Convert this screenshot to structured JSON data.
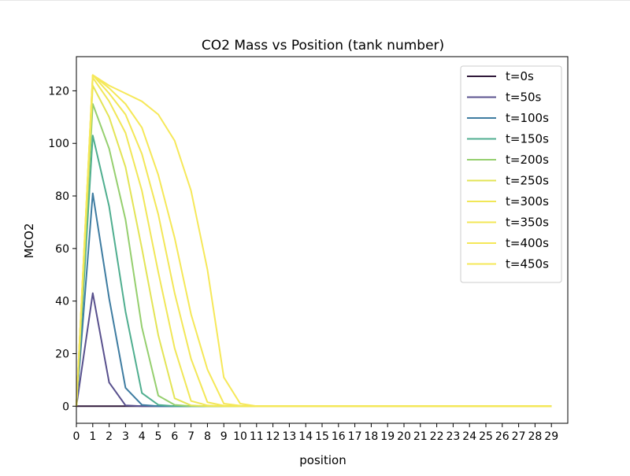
{
  "chart_data": {
    "type": "line",
    "title": "CO2 Mass vs Position (tank number)",
    "xlabel": "position",
    "ylabel": "MCO2",
    "xlim": [
      0,
      30
    ],
    "ylim": [
      -6.5,
      133
    ],
    "xticks": [
      0,
      1,
      2,
      3,
      4,
      5,
      6,
      7,
      8,
      9,
      10,
      11,
      12,
      13,
      14,
      15,
      16,
      17,
      18,
      19,
      20,
      21,
      22,
      23,
      24,
      25,
      26,
      27,
      28,
      29
    ],
    "yticks": [
      0,
      20,
      40,
      60,
      80,
      100,
      120
    ],
    "grid": false,
    "legend_position": "top-right",
    "x": [
      0,
      1,
      2,
      3,
      4,
      5,
      6,
      7,
      8,
      9,
      10,
      11,
      12,
      13,
      14,
      15,
      16,
      17,
      18,
      19,
      20,
      21,
      22,
      23,
      24,
      25,
      26,
      27,
      28,
      29
    ],
    "series": [
      {
        "name": "t=0s",
        "color": "#30193a",
        "values": [
          0,
          0,
          0,
          0,
          0,
          0,
          0,
          0,
          0,
          0,
          0,
          0,
          0,
          0,
          0,
          0,
          0,
          0,
          0,
          0,
          0,
          0,
          0,
          0,
          0,
          0,
          0,
          0,
          0,
          0
        ]
      },
      {
        "name": "t=50s",
        "color": "#58508d",
        "values": [
          0,
          43,
          9,
          0.3,
          0,
          0,
          0,
          0,
          0,
          0,
          0,
          0,
          0,
          0,
          0,
          0,
          0,
          0,
          0,
          0,
          0,
          0,
          0,
          0,
          0,
          0,
          0,
          0,
          0,
          0
        ]
      },
      {
        "name": "t=100s",
        "color": "#3e7ca1",
        "values": [
          0,
          81,
          41,
          7,
          0.5,
          0,
          0,
          0,
          0,
          0,
          0,
          0,
          0,
          0,
          0,
          0,
          0,
          0,
          0,
          0,
          0,
          0,
          0,
          0,
          0,
          0,
          0,
          0,
          0,
          0
        ]
      },
      {
        "name": "t=150s",
        "color": "#4fae8f",
        "values": [
          0,
          103,
          76,
          36,
          5,
          0.5,
          0,
          0,
          0,
          0,
          0,
          0,
          0,
          0,
          0,
          0,
          0,
          0,
          0,
          0,
          0,
          0,
          0,
          0,
          0,
          0,
          0,
          0,
          0,
          0
        ]
      },
      {
        "name": "t=200s",
        "color": "#95cf6e",
        "values": [
          0,
          115,
          98,
          71,
          30,
          4,
          0.5,
          0,
          0,
          0,
          0,
          0,
          0,
          0,
          0,
          0,
          0,
          0,
          0,
          0,
          0,
          0,
          0,
          0,
          0,
          0,
          0,
          0,
          0,
          0
        ]
      },
      {
        "name": "t=250s",
        "color": "#e3e455",
        "values": [
          0,
          122,
          110,
          91,
          60,
          27,
          3,
          0.3,
          0,
          0,
          0,
          0,
          0,
          0,
          0,
          0,
          0,
          0,
          0,
          0,
          0,
          0,
          0,
          0,
          0,
          0,
          0,
          0,
          0,
          0
        ]
      },
      {
        "name": "t=300s",
        "color": "#f1e757",
        "values": [
          0,
          125,
          116,
          104,
          82,
          51,
          22,
          2,
          0.3,
          0,
          0,
          0,
          0,
          0,
          0,
          0,
          0,
          0,
          0,
          0,
          0,
          0,
          0,
          0,
          0,
          0,
          0,
          0,
          0,
          0
        ]
      },
      {
        "name": "t=350s",
        "color": "#f3e757",
        "values": [
          0,
          126,
          119,
          111,
          96,
          73,
          43,
          18,
          1.5,
          0.2,
          0,
          0,
          0,
          0,
          0,
          0,
          0,
          0,
          0,
          0,
          0,
          0,
          0,
          0,
          0,
          0,
          0,
          0,
          0,
          0
        ]
      },
      {
        "name": "t=400s",
        "color": "#f5e858",
        "values": [
          0,
          126,
          121,
          115,
          106,
          88,
          64,
          35,
          14,
          1,
          0.2,
          0,
          0,
          0,
          0,
          0,
          0,
          0,
          0,
          0,
          0,
          0,
          0,
          0,
          0,
          0,
          0,
          0,
          0,
          0
        ]
      },
      {
        "name": "t=450s",
        "color": "#f6e859",
        "values": [
          0,
          126,
          122,
          119,
          116,
          111,
          101,
          82,
          52,
          11,
          1,
          0,
          0,
          0,
          0,
          0,
          0,
          0,
          0,
          0,
          0,
          0,
          0,
          0,
          0,
          0,
          0,
          0,
          0,
          0
        ]
      }
    ]
  }
}
